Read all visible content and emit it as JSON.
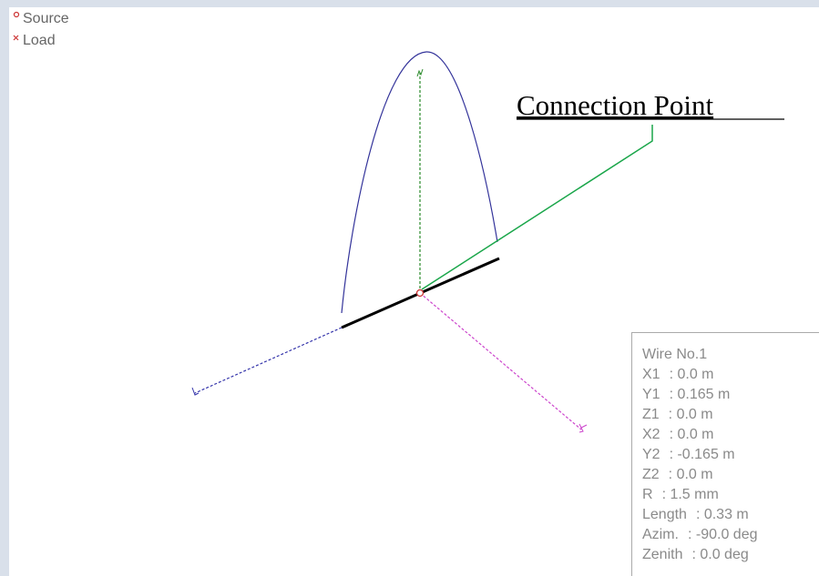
{
  "legend": [
    "Source",
    "Load"
  ],
  "annotation": "Connection Point",
  "info": {
    "title": "Wire No.1",
    "rows": [
      {
        "label": "X1",
        "value": ": 0.0 m"
      },
      {
        "label": "Y1",
        "value": ": 0.165 m"
      },
      {
        "label": "Z1",
        "value": ": 0.0 m"
      },
      {
        "label": "X2",
        "value": ": 0.0 m"
      },
      {
        "label": "Y2",
        "value": ": -0.165 m"
      },
      {
        "label": "Z2",
        "value": ": 0.0 m"
      },
      {
        "label": "R",
        "value": ": 1.5 mm"
      },
      {
        "label": "Length",
        "value": ": 0.33 m"
      },
      {
        "label": "Azim.",
        "value": ": -90.0 deg"
      },
      {
        "label": "Zenith",
        "value": ": 0.0 deg"
      }
    ]
  }
}
